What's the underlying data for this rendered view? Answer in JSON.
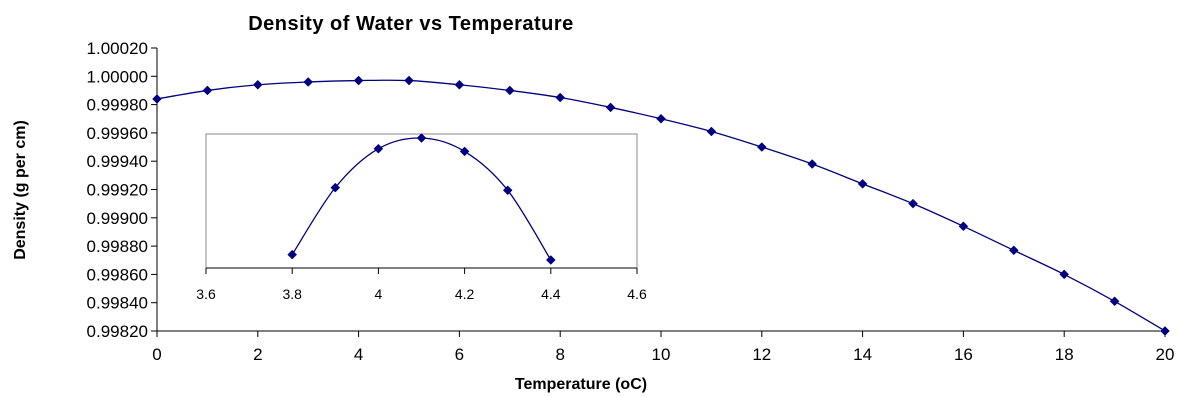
{
  "chart_data": [
    {
      "type": "line",
      "title": "Density of Water vs Temperature",
      "xlabel": "Temperature (oC)",
      "ylabel": "Density (g per cm)",
      "xlim": [
        0,
        20
      ],
      "ylim": [
        0.9982,
        1.0002
      ],
      "grid": false,
      "legend": "none",
      "x_ticks": [
        "0",
        "2",
        "4",
        "6",
        "8",
        "10",
        "12",
        "14",
        "16",
        "18",
        "20"
      ],
      "y_ticks": [
        "0.99820",
        "0.99840",
        "0.99860",
        "0.99880",
        "0.99900",
        "0.99920",
        "0.99940",
        "0.99960",
        "0.99980",
        "1.00000",
        "1.00020"
      ],
      "series": [
        {
          "color": "#000080",
          "marker": "diamond",
          "x": [
            0,
            1,
            2,
            3,
            4,
            5,
            6,
            7,
            8,
            9,
            10,
            11,
            12,
            13,
            14,
            15,
            16,
            17,
            18,
            19,
            20
          ],
          "y": [
            0.99984,
            0.9999,
            0.99994,
            0.99996,
            0.99997,
            0.99997,
            0.99994,
            0.9999,
            0.99985,
            0.99978,
            0.9997,
            0.99961,
            0.9995,
            0.99938,
            0.99924,
            0.9991,
            0.99894,
            0.99877,
            0.9986,
            0.99841,
            0.9982
          ]
        }
      ]
    },
    {
      "type": "line",
      "title": "",
      "xlabel": "",
      "ylabel": "",
      "xlim": [
        3.6,
        4.6
      ],
      "grid": false,
      "legend": "none",
      "x_ticks": [
        "3.6",
        "3.8",
        "4",
        "4.2",
        "4.4",
        "4.6"
      ],
      "series": [
        {
          "color": "#000080",
          "marker": "diamond",
          "x": [
            3.8,
            3.9,
            4.0,
            4.1,
            4.2,
            4.3,
            4.4
          ],
          "y": [
            0.1,
            0.6,
            0.89,
            0.97,
            0.87,
            0.58,
            0.06
          ]
        }
      ]
    }
  ]
}
